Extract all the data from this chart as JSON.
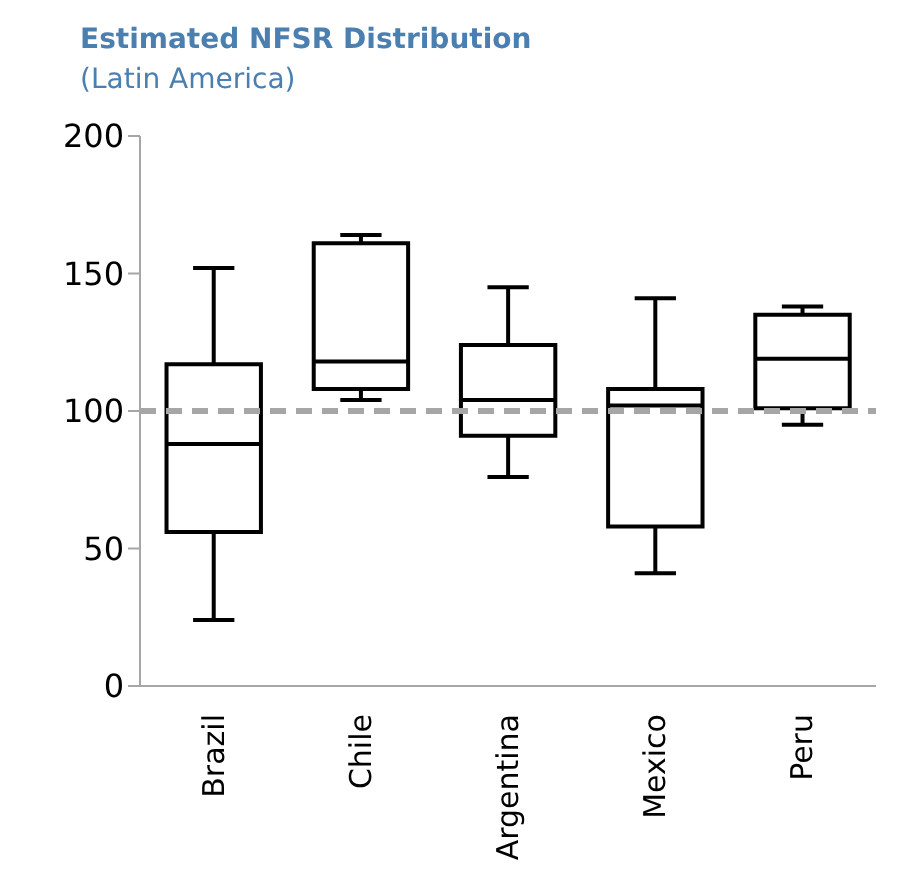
{
  "chart_data": {
    "type": "box",
    "title": "Estimated NFSR Distribution",
    "subtitle": "(Latin America)",
    "categories": [
      "Brazil",
      "Chile",
      "Argentina",
      "Mexico",
      "Peru"
    ],
    "boxes": [
      {
        "low": 24,
        "q1": 56,
        "median": 88,
        "q3": 117,
        "high": 152
      },
      {
        "low": 104,
        "q1": 108,
        "median": 118,
        "q3": 161,
        "high": 164
      },
      {
        "low": 76,
        "q1": 91,
        "median": 104,
        "q3": 124,
        "high": 145
      },
      {
        "low": 41,
        "q1": 58,
        "median": 102,
        "q3": 108,
        "high": 141
      },
      {
        "low": 95,
        "q1": 101,
        "median": 119,
        "q3": 135,
        "high": 138
      }
    ],
    "color": "#000000",
    "ylim": [
      0,
      200
    ],
    "yticks": [
      0,
      50,
      100,
      150,
      200
    ],
    "ref_lines": [
      {
        "axis": "y",
        "value": 100,
        "color": "#a6a6a6",
        "line_style": "dashed"
      }
    ]
  }
}
